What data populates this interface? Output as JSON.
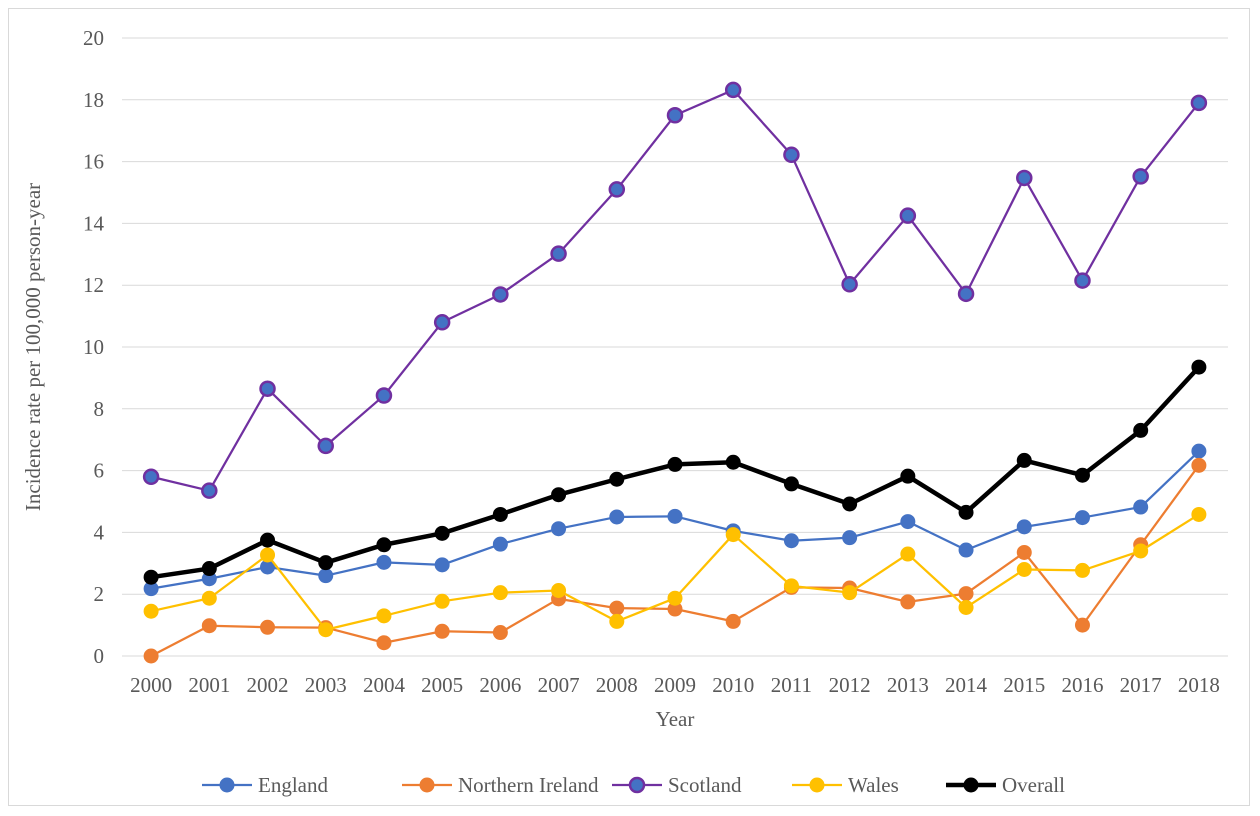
{
  "chart_data": {
    "type": "line",
    "title": "",
    "xlabel": "Year",
    "ylabel": "Incidence rate per 100,000 person-year",
    "ylim": [
      0,
      20
    ],
    "yticks": [
      0,
      2,
      4,
      6,
      8,
      10,
      12,
      14,
      16,
      18,
      20
    ],
    "grid": true,
    "legend_position": "bottom",
    "x": [
      "2000",
      "2001",
      "2002",
      "2003",
      "2004",
      "2005",
      "2006",
      "2007",
      "2008",
      "2009",
      "2010",
      "2011",
      "2012",
      "2013",
      "2014",
      "2015",
      "2016",
      "2017",
      "2018"
    ],
    "series": [
      {
        "name": "England",
        "color": "#4472c4",
        "values": [
          2.18,
          2.5,
          2.88,
          2.6,
          3.03,
          2.95,
          3.62,
          4.12,
          4.5,
          4.52,
          4.05,
          3.73,
          3.83,
          4.35,
          3.43,
          4.18,
          4.48,
          4.82,
          6.63
        ]
      },
      {
        "name": "Northern Ireland",
        "color": "#ed7d31",
        "values": [
          0.0,
          0.98,
          0.93,
          0.92,
          0.43,
          0.8,
          0.76,
          1.85,
          1.55,
          1.52,
          1.12,
          2.22,
          2.2,
          1.75,
          2.02,
          3.35,
          1.0,
          3.6,
          6.17
        ]
      },
      {
        "name": "Scotland",
        "color": "#7030a0",
        "marker_color": "#4472c4",
        "values": [
          5.8,
          5.35,
          8.65,
          6.8,
          8.43,
          10.8,
          11.7,
          13.02,
          15.1,
          17.5,
          18.32,
          16.22,
          12.03,
          14.25,
          11.72,
          15.47,
          12.15,
          15.52,
          17.9
        ]
      },
      {
        "name": "Wales",
        "color": "#ffc000",
        "values": [
          1.45,
          1.87,
          3.27,
          0.85,
          1.3,
          1.77,
          2.05,
          2.12,
          1.12,
          1.87,
          3.93,
          2.27,
          2.05,
          3.3,
          1.57,
          2.8,
          2.77,
          3.4,
          4.58
        ]
      },
      {
        "name": "Overall",
        "color": "#000000",
        "values": [
          2.55,
          2.83,
          3.75,
          3.02,
          3.6,
          3.97,
          4.58,
          5.22,
          5.72,
          6.2,
          6.27,
          5.57,
          4.92,
          5.82,
          4.65,
          6.33,
          5.85,
          7.3,
          9.35
        ]
      }
    ]
  }
}
